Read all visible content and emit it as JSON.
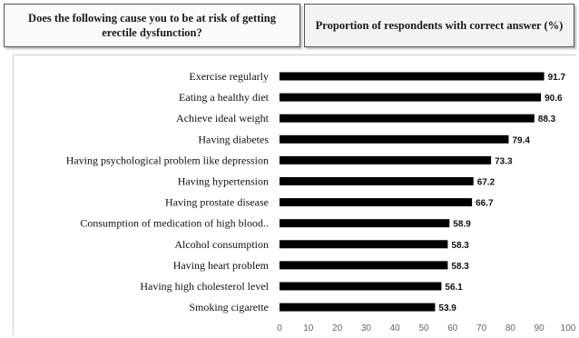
{
  "header": {
    "left_title": "Does the following cause you to be at risk of getting erectile dysfunction?",
    "right_title": "Proportion of respondents with correct answer (%)"
  },
  "chart_data": {
    "type": "bar",
    "orientation": "horizontal",
    "categories": [
      "Exercise regularly",
      "Eating a healthy diet",
      "Achieve ideal weight",
      "Having diabetes",
      "Having psychological problem like depression",
      "Having hypertension",
      "Having prostate disease",
      "Consumption of medication of high blood..",
      "Alcohol consumption",
      "Having heart problem",
      "Having high cholesterol level",
      "Smoking cigarette"
    ],
    "values": [
      91.7,
      90.6,
      88.3,
      79.4,
      73.3,
      67.2,
      66.7,
      58.9,
      58.3,
      58.3,
      56.1,
      53.9
    ],
    "value_labels": [
      "91.7",
      "90.6",
      "88.3",
      "79.4",
      "73.3",
      "67.2",
      "66.7",
      "58.9",
      "58.3",
      "58.3",
      "56.1",
      "53.9"
    ],
    "xlim": [
      0,
      100
    ],
    "x_ticks": [
      "0",
      "10",
      "20",
      "30",
      "40",
      "50",
      "60",
      "70",
      "80",
      "90",
      "100"
    ],
    "bar_color": "#000000",
    "grid": false,
    "legend": "none"
  }
}
